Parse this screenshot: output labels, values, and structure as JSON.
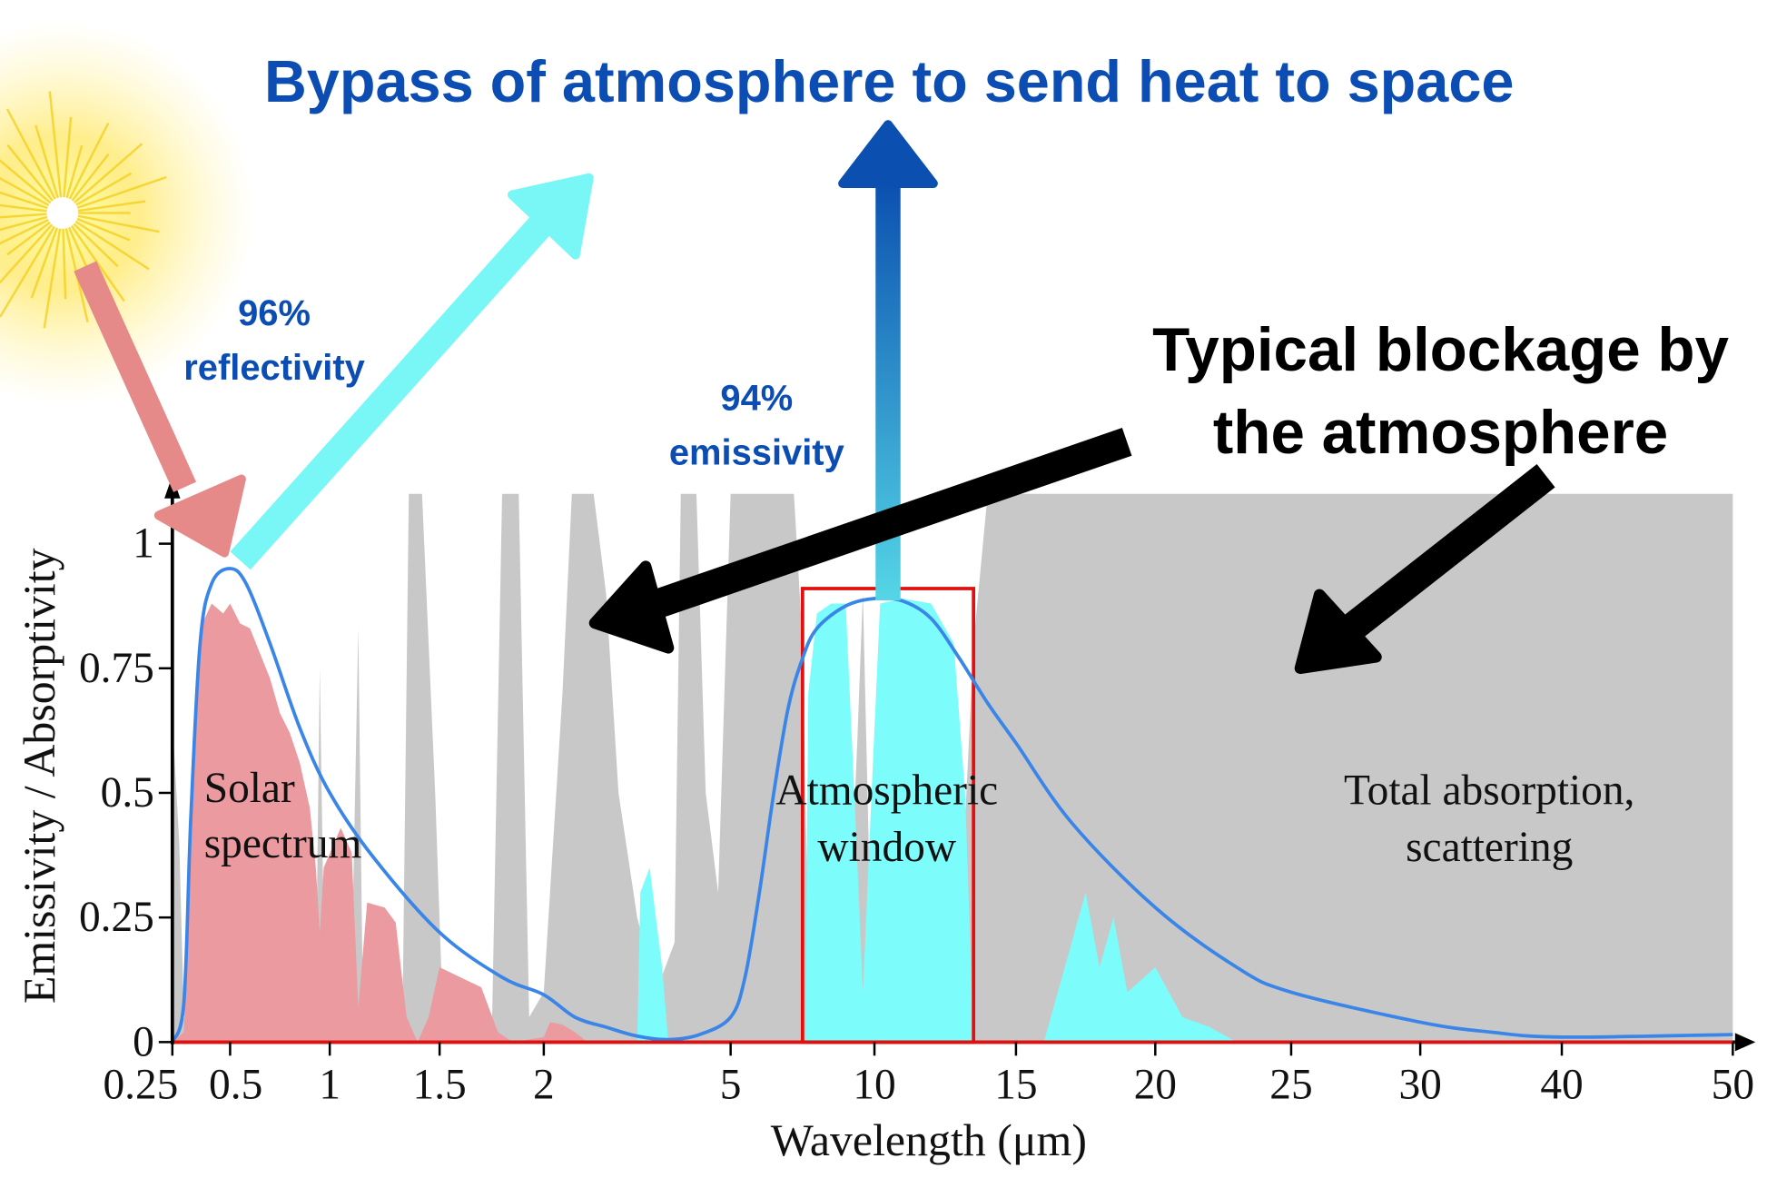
{
  "title": "Bypass of atmosphere to send heat to space",
  "annotations": {
    "reflectivity_pct": "96%",
    "reflectivity_label": "reflectivity",
    "emissivity_pct": "94%",
    "emissivity_label": "emissivity",
    "blockage_line1": "Typical blockage by",
    "blockage_line2": "the atmosphere",
    "solar_line1": "Solar",
    "solar_line2": "spectrum",
    "window_line1": "Atmospheric",
    "window_line2": "window",
    "total_line1": "Total absorption,",
    "total_line2": "scattering"
  },
  "colors": {
    "title": "#0b4db3",
    "blue_text": "#0b4db3",
    "emissivity_curve": "#3a86e8",
    "solar_fill": "#eb9ba0",
    "atmosphere_gray": "#c8c8c8",
    "window_cyan": "#7dfcfc",
    "red_box": "#e01010",
    "sun_arrow": "#e58a88",
    "reflect_arrow": "#79f7f7",
    "black_arrow": "#000000"
  },
  "chart_data": {
    "type": "area",
    "xlabel": "Wavelength (μm)",
    "ylabel": "Emissivity / Absorptivity",
    "x_ticks": [
      "0.25",
      "0.5",
      "1",
      "1.5",
      "2",
      "5",
      "10",
      "15",
      "20",
      "25",
      "30",
      "40",
      "50"
    ],
    "x_tick_values": [
      0.25,
      0.5,
      1,
      1.5,
      2,
      5,
      10,
      15,
      20,
      25,
      30,
      40,
      50
    ],
    "y_ticks": [
      "0",
      "0.25",
      "0.5",
      "0.75",
      "1"
    ],
    "y_tick_values": [
      0,
      0.25,
      0.5,
      0.75,
      1
    ],
    "ylim": [
      0,
      1.1
    ],
    "xlim": [
      0.25,
      50
    ],
    "x_scale": "piecewise (non-linear)",
    "selective_emitter_window": {
      "x_range": [
        7.5,
        13.5
      ],
      "emissivity": 0.91
    },
    "series": [
      {
        "name": "Emissivity",
        "kind": "line",
        "points": [
          [
            0.25,
            0
          ],
          [
            0.3,
            0.08
          ],
          [
            0.33,
            0.45
          ],
          [
            0.37,
            0.8
          ],
          [
            0.42,
            0.92
          ],
          [
            0.5,
            0.95
          ],
          [
            0.58,
            0.92
          ],
          [
            0.7,
            0.8
          ],
          [
            0.85,
            0.63
          ],
          [
            1,
            0.5
          ],
          [
            1.2,
            0.37
          ],
          [
            1.5,
            0.22
          ],
          [
            1.8,
            0.13
          ],
          [
            2,
            0.095
          ],
          [
            2.5,
            0.05
          ],
          [
            3,
            0.03
          ],
          [
            3.5,
            0.012
          ],
          [
            4,
            0.005
          ],
          [
            4.5,
            0.015
          ],
          [
            5,
            0.05
          ],
          [
            5.5,
            0.13
          ],
          [
            6,
            0.3
          ],
          [
            6.5,
            0.5
          ],
          [
            7,
            0.67
          ],
          [
            7.5,
            0.77
          ],
          [
            8,
            0.83
          ],
          [
            9,
            0.875
          ],
          [
            10,
            0.89
          ],
          [
            11,
            0.885
          ],
          [
            12,
            0.85
          ],
          [
            13,
            0.77
          ],
          [
            14,
            0.68
          ],
          [
            15,
            0.6
          ],
          [
            17,
            0.44
          ],
          [
            20,
            0.27
          ],
          [
            23,
            0.15
          ],
          [
            25,
            0.1
          ],
          [
            30,
            0.04
          ],
          [
            35,
            0.02
          ],
          [
            40,
            0.01
          ],
          [
            50,
            0.015
          ]
        ]
      },
      {
        "name": "Solar spectrum",
        "kind": "area",
        "points": [
          [
            0.25,
            0
          ],
          [
            0.3,
            0.02
          ],
          [
            0.33,
            0.5
          ],
          [
            0.37,
            0.83
          ],
          [
            0.42,
            0.88
          ],
          [
            0.47,
            0.86
          ],
          [
            0.5,
            0.88
          ],
          [
            0.55,
            0.84
          ],
          [
            0.6,
            0.83
          ],
          [
            0.65,
            0.78
          ],
          [
            0.7,
            0.73
          ],
          [
            0.75,
            0.66
          ],
          [
            0.8,
            0.62
          ],
          [
            0.85,
            0.56
          ],
          [
            0.9,
            0.47
          ],
          [
            0.93,
            0.35
          ],
          [
            0.95,
            0.22
          ],
          [
            0.97,
            0.35
          ],
          [
            1.05,
            0.43
          ],
          [
            1.1,
            0.38
          ],
          [
            1.13,
            0.07
          ],
          [
            1.17,
            0.28
          ],
          [
            1.25,
            0.27
          ],
          [
            1.3,
            0.24
          ],
          [
            1.35,
            0.05
          ],
          [
            1.4,
            0
          ],
          [
            1.45,
            0.05
          ],
          [
            1.5,
            0.15
          ],
          [
            1.6,
            0.13
          ],
          [
            1.7,
            0.11
          ],
          [
            1.78,
            0.02
          ],
          [
            1.85,
            0
          ],
          [
            2,
            0.01
          ],
          [
            2.1,
            0.04
          ],
          [
            2.3,
            0.035
          ],
          [
            2.5,
            0.02
          ],
          [
            2.7,
            0
          ],
          [
            50,
            0
          ]
        ]
      },
      {
        "name": "Atmospheric absorption",
        "kind": "area",
        "points": [
          [
            0.25,
            0.65
          ],
          [
            0.28,
            0.4
          ],
          [
            0.3,
            0.05
          ],
          [
            0.32,
            0
          ],
          [
            0.9,
            0
          ],
          [
            0.93,
            0.1
          ],
          [
            0.95,
            0.75
          ],
          [
            0.97,
            0.22
          ],
          [
            1.0,
            0
          ],
          [
            1.1,
            0.15
          ],
          [
            1.13,
            0.83
          ],
          [
            1.15,
            0.1
          ],
          [
            1.2,
            0
          ],
          [
            1.33,
            0
          ],
          [
            1.36,
            1.1
          ],
          [
            1.42,
            1.1
          ],
          [
            1.48,
            0.5
          ],
          [
            1.52,
            0
          ],
          [
            1.75,
            0
          ],
          [
            1.8,
            1.1
          ],
          [
            1.88,
            1.1
          ],
          [
            1.93,
            0.05
          ],
          [
            2.0,
            0.1
          ],
          [
            2.3,
            0.7
          ],
          [
            2.45,
            1.1
          ],
          [
            2.8,
            1.1
          ],
          [
            3.0,
            0.9
          ],
          [
            3.2,
            0.5
          ],
          [
            3.5,
            0.25
          ],
          [
            3.8,
            0.1
          ],
          [
            4.1,
            0.2
          ],
          [
            4.2,
            1.1
          ],
          [
            4.45,
            1.1
          ],
          [
            4.6,
            0.5
          ],
          [
            4.8,
            0.3
          ],
          [
            5.0,
            1.1
          ],
          [
            5.3,
            1.1
          ],
          [
            5.7,
            1.1
          ],
          [
            6.5,
            1.1
          ],
          [
            7.2,
            1.1
          ],
          [
            7.5,
            0.8
          ],
          [
            7.7,
            0.2
          ],
          [
            8,
            0.05
          ],
          [
            9,
            0.05
          ],
          [
            9.4,
            0.6
          ],
          [
            9.6,
            0.9
          ],
          [
            9.8,
            0.4
          ],
          [
            10.2,
            0.05
          ],
          [
            12,
            0.05
          ],
          [
            13,
            0.2
          ],
          [
            13.5,
            0.8
          ],
          [
            14,
            1.1
          ],
          [
            50,
            1.1
          ]
        ]
      },
      {
        "name": "Atmospheric window transmission",
        "kind": "area",
        "points": [
          [
            3.5,
            0
          ],
          [
            3.55,
            0.3
          ],
          [
            3.7,
            0.35
          ],
          [
            3.9,
            0.15
          ],
          [
            4.0,
            0
          ],
          [
            4.5,
            0
          ],
          [
            7.6,
            0
          ],
          [
            7.7,
            0.7
          ],
          [
            8,
            0.86
          ],
          [
            8.5,
            0.88
          ],
          [
            9,
            0.88
          ],
          [
            9.3,
            0.5
          ],
          [
            9.6,
            0.1
          ],
          [
            9.9,
            0.5
          ],
          [
            10.2,
            0.88
          ],
          [
            11,
            0.89
          ],
          [
            12,
            0.88
          ],
          [
            12.8,
            0.8
          ],
          [
            13.2,
            0.5
          ],
          [
            13.5,
            0
          ],
          [
            16,
            0
          ],
          [
            16.5,
            0.1
          ],
          [
            17,
            0.2
          ],
          [
            17.5,
            0.3
          ],
          [
            18,
            0.15
          ],
          [
            18.5,
            0.25
          ],
          [
            19,
            0.1
          ],
          [
            20,
            0.15
          ],
          [
            21,
            0.05
          ],
          [
            22,
            0.03
          ],
          [
            23,
            0
          ],
          [
            50,
            0
          ]
        ]
      }
    ]
  }
}
